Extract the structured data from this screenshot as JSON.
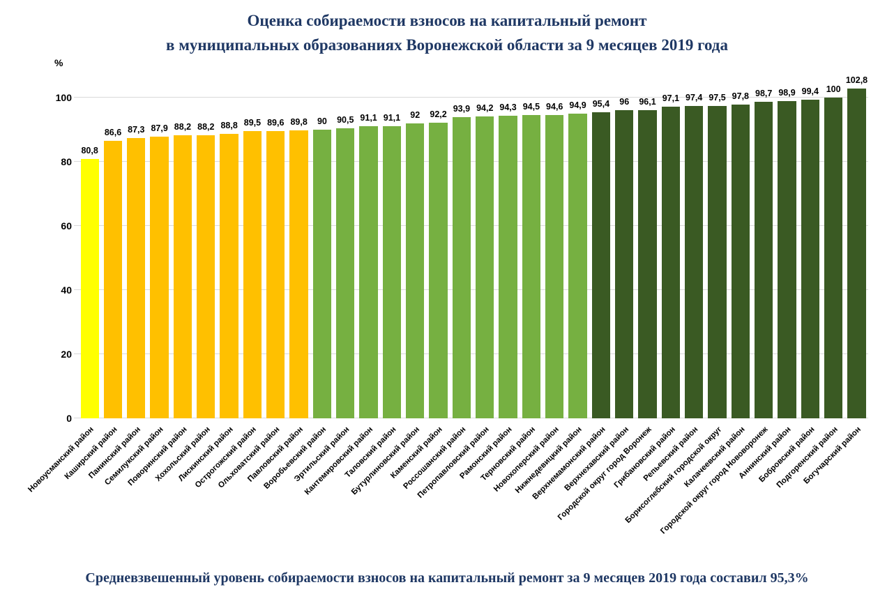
{
  "title": {
    "line1": "Оценка собираемости взносов на капитальный ремонт",
    "line2": "в муниципальных образованиях Воронежской области за 9 месяцев 2019 года"
  },
  "footer": {
    "text": "Средневзвешенный уровень собираемости взносов на капитальный ремонт за 9 месяцев 2019 года составил 95,3%"
  },
  "colors": {
    "yellow": "#FFFF00",
    "orange": "#FFC000",
    "green": "#76B041",
    "dark_green": "#3A5A23",
    "title_navy": "#1F3864",
    "grid": "#D9D9D9"
  },
  "chart_data": {
    "type": "bar",
    "title": "Оценка собираемости взносов на капитальный ремонт в муниципальных образованиях Воронежской области за 9 месяцев 2019 года",
    "xlabel": "",
    "ylabel": "%",
    "unit_label": "%",
    "ylim": [
      0,
      106
    ],
    "grid": true,
    "legend": "none",
    "y_ticks": [
      0,
      20,
      40,
      60,
      80,
      100
    ],
    "categories": [
      "Новоусманский район",
      "Каширский район",
      "Панинский район",
      "Семилукский район",
      "Поворинский район",
      "Хохольский район",
      "Лискинский район",
      "Острогожский район",
      "Ольховатский район",
      "Павловский район",
      "Воробьевский район",
      "Эртильский район",
      "Кантемировский район",
      "Таловский район",
      "Бутурлиновский район",
      "Каменский район",
      "Россошанский район",
      "Петропавловский район",
      "Рамонский район",
      "Терновский район",
      "Новохоперский район",
      "Нижнедевицкий район",
      "Верхнемамонский район",
      "Верхнехавский район",
      "Городской округ город Воронеж",
      "Грибановский район",
      "Репьевский район",
      "Борисоглебский городской округ",
      "Калачеевский район",
      "Городской округ город Нововоронеж",
      "Аннинский район",
      "Бобровский район",
      "Подгоренский район",
      "Богучарский район"
    ],
    "values": [
      80.8,
      86.6,
      87.3,
      87.9,
      88.2,
      88.2,
      88.8,
      89.5,
      89.6,
      89.8,
      90,
      90.5,
      91.1,
      91.1,
      92,
      92.2,
      93.9,
      94.2,
      94.3,
      94.5,
      94.6,
      94.9,
      95.4,
      96,
      96.1,
      97.1,
      97.4,
      97.5,
      97.8,
      98.7,
      98.9,
      99.4,
      100,
      102.8
    ],
    "value_labels": [
      "80,8",
      "86,6",
      "87,3",
      "87,9",
      "88,2",
      "88,2",
      "88,8",
      "89,5",
      "89,6",
      "89,8",
      "90",
      "90,5",
      "91,1",
      "91,1",
      "92",
      "92,2",
      "93,9",
      "94,2",
      "94,3",
      "94,5",
      "94,6",
      "94,9",
      "95,4",
      "96",
      "96,1",
      "97,1",
      "97,4",
      "97,5",
      "97,8",
      "98,7",
      "98,9",
      "99,4",
      "100",
      "102,8"
    ],
    "bar_groups": [
      "yellow",
      "orange",
      "orange",
      "orange",
      "orange",
      "orange",
      "orange",
      "orange",
      "orange",
      "orange",
      "green",
      "green",
      "green",
      "green",
      "green",
      "green",
      "green",
      "green",
      "green",
      "green",
      "green",
      "green",
      "dark_green",
      "dark_green",
      "dark_green",
      "dark_green",
      "dark_green",
      "dark_green",
      "dark_green",
      "dark_green",
      "dark_green",
      "dark_green",
      "dark_green",
      "dark_green"
    ]
  }
}
